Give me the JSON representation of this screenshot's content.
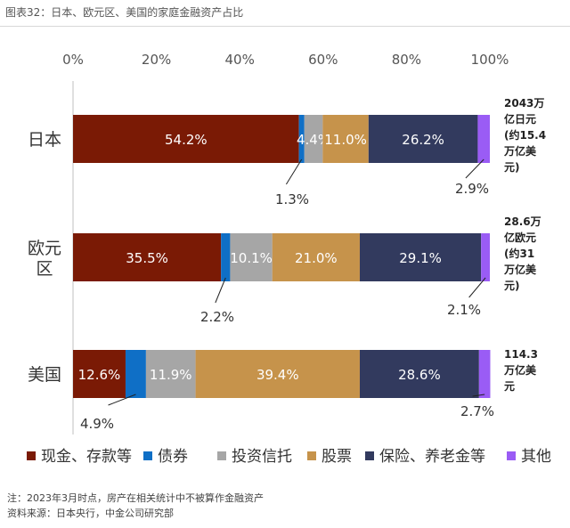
{
  "caption": "图表32：日本、欧元区、美国的家庭金融资产占比",
  "notes": {
    "note": "注：2023年3月时点，房产在相关统计中不被算作金融资产",
    "source": "资料来源：日本央行，中金公司研究部"
  },
  "chart_data": {
    "type": "bar",
    "orientation": "horizontal",
    "stacked": true,
    "xlim": [
      0,
      100
    ],
    "xticks": [
      "0%",
      "20%",
      "40%",
      "60%",
      "80%",
      "100%"
    ],
    "grid": false,
    "legend_position": "bottom",
    "categories": [
      {
        "label": "日本",
        "total": [
          "2043万",
          "亿日元",
          "(约15.4",
          "万亿美",
          "元)"
        ]
      },
      {
        "label": "欧元\n区",
        "total": [
          "28.6万",
          "亿欧元",
          "(约31",
          "万亿美",
          "元)"
        ]
      },
      {
        "label": "美国",
        "total": [
          "114.3",
          "万亿美",
          "元"
        ]
      }
    ],
    "series": [
      {
        "name": "现金、存款等",
        "color": "#7a1a05",
        "values": [
          54.2,
          35.5,
          12.6
        ],
        "labels": [
          "54.2%",
          "35.5%",
          "12.6%"
        ]
      },
      {
        "name": "债券",
        "color": "#0f6fc6",
        "values": [
          1.3,
          2.2,
          4.9
        ],
        "labels": [
          "1.3%",
          "2.2%",
          "4.9%"
        ]
      },
      {
        "name": "投资信托",
        "color": "#a6a6a6",
        "values": [
          4.4,
          10.1,
          11.9
        ],
        "labels": [
          "4.4%",
          "10.1%",
          "11.9%"
        ]
      },
      {
        "name": "股票",
        "color": "#c6934b",
        "values": [
          11.0,
          21.0,
          39.4
        ],
        "labels": [
          "11.0%",
          "21.0%",
          "39.4%"
        ]
      },
      {
        "name": "保险、养老金等",
        "color": "#323a5e",
        "values": [
          26.2,
          29.1,
          28.6
        ],
        "labels": [
          "26.2%",
          "29.1%",
          "28.6%"
        ]
      },
      {
        "name": "其他",
        "color": "#9a5cf5",
        "values": [
          2.9,
          2.1,
          2.7
        ],
        "labels": [
          "2.9%",
          "2.1%",
          "2.7%"
        ]
      }
    ]
  }
}
